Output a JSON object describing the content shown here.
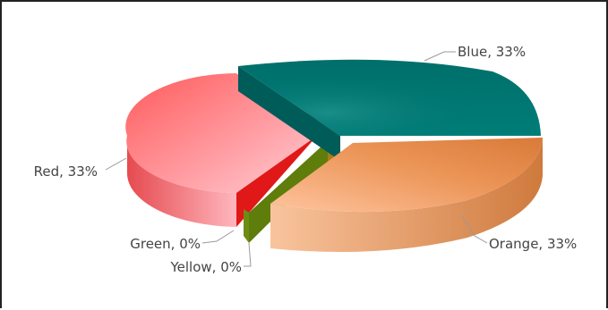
{
  "chart_data": {
    "type": "pie",
    "variant": "3d-exploded",
    "title": "",
    "legend": "none",
    "slices": [
      {
        "name": "Blue",
        "value": 33,
        "label": "Blue, 33%",
        "color": "#00736f"
      },
      {
        "name": "Orange",
        "value": 33,
        "label": "Orange, 33%",
        "color": "#e2894f"
      },
      {
        "name": "Yellow",
        "value": 0,
        "label": "Yellow, 0%",
        "color": "#5e7d0a"
      },
      {
        "name": "Green",
        "value": 0,
        "label": "Green, 0%",
        "color": "#5e7d0a"
      },
      {
        "name": "Red",
        "value": 33,
        "label": "Red, 33%",
        "color": "#f05f5f"
      }
    ]
  }
}
